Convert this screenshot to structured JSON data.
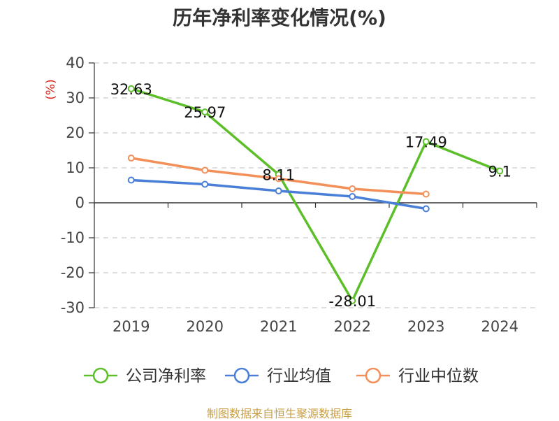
{
  "chart_data": {
    "type": "line",
    "title": "历年净利率变化情况(%)",
    "ylabel": "(%)",
    "xlabel": "",
    "categories": [
      "2019",
      "2020",
      "2021",
      "2022",
      "2023",
      "2024"
    ],
    "ylim": [
      -30,
      40
    ],
    "yticks": [
      40,
      30,
      20,
      10,
      0,
      -10,
      -20,
      -30
    ],
    "grid": true,
    "legend_position": "bottom",
    "series": [
      {
        "name": "公司净利率",
        "color": "#5cbf2a",
        "values": [
          32.63,
          25.97,
          8.11,
          -28.01,
          17.49,
          9.1
        ],
        "labels": [
          "32.63",
          "25.97",
          "8.11",
          "-28.01",
          "17.49",
          "9.1"
        ]
      },
      {
        "name": "行业均值",
        "color": "#4a7fd8",
        "values": [
          6.5,
          5.3,
          3.4,
          1.8,
          -1.7,
          null
        ]
      },
      {
        "name": "行业中位数",
        "color": "#f39059",
        "values": [
          12.8,
          9.3,
          6.9,
          4.0,
          2.5,
          null
        ]
      }
    ]
  },
  "source": "制图数据来自恒生聚源数据库"
}
